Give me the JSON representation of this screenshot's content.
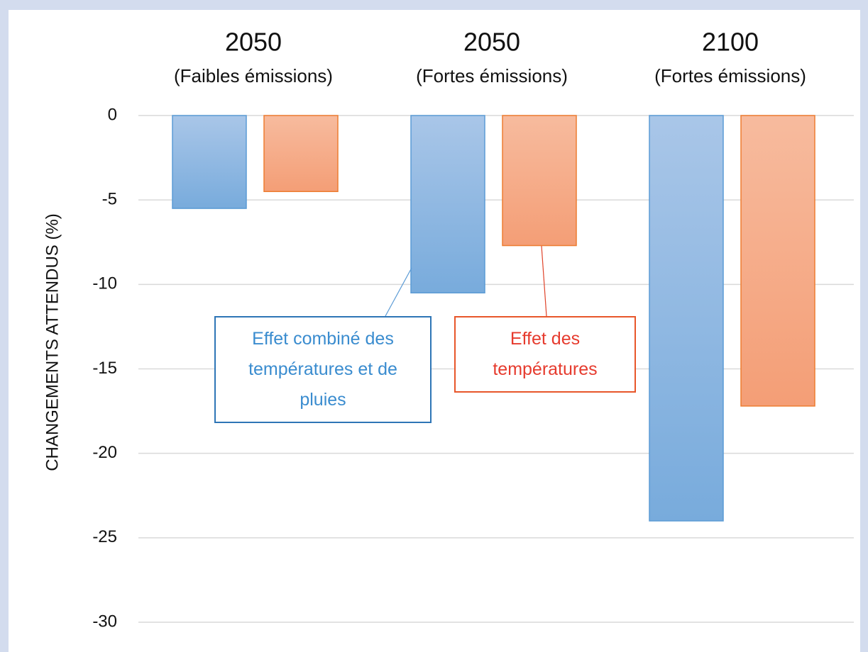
{
  "chart_data": {
    "type": "bar",
    "y_label": "CHANGEMENTS ATTENDUS (%)",
    "categories": [
      "2050",
      "2050",
      "2100"
    ],
    "category_notes": [
      "(Faibles émissions)",
      "(Fortes émissions)",
      "(Fortes émissions)"
    ],
    "series": [
      {
        "name": "Effet combiné des températures et de pluies",
        "color": "#5b9bd5",
        "values": [
          -5.5,
          -10.5,
          -24
        ]
      },
      {
        "name": "Effet des températures",
        "color": "#ed7d31",
        "values": [
          -4.5,
          -7.7,
          -17.2
        ]
      }
    ],
    "ylim": [
      -30,
      0
    ],
    "yticks": [
      0,
      -5,
      -10,
      -15,
      -20,
      -25,
      -30
    ],
    "grid": true
  }
}
